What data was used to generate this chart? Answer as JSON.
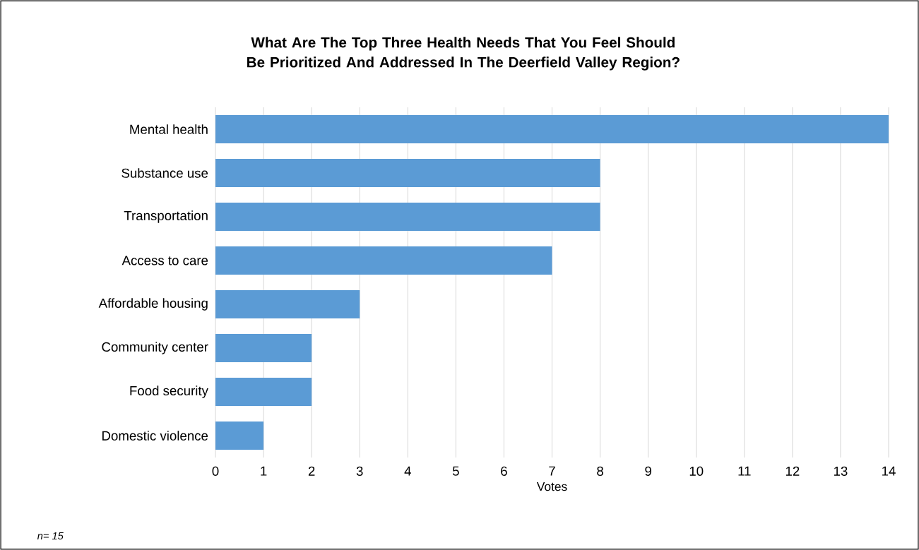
{
  "chart_data": {
    "type": "bar",
    "orientation": "horizontal",
    "title": "What Are The Top Three Health Needs That You Feel Should Be Prioritized And Addressed In The Deerfield Valley Region?",
    "categories": [
      "Mental health",
      "Substance use",
      "Transportation",
      "Access to care",
      "Affordable housing",
      "Community center",
      "Food security",
      "Domestic violence"
    ],
    "values": [
      14,
      8,
      8,
      7,
      3,
      2,
      2,
      1
    ],
    "color": "#5b9bd5",
    "xlabel": "Votes",
    "xlim": [
      0,
      14
    ],
    "xticks": [
      0,
      1,
      2,
      3,
      4,
      5,
      6,
      7,
      8,
      9,
      10,
      11,
      12,
      13,
      14
    ],
    "grid": "x",
    "annotations": [
      "n= 15"
    ]
  }
}
